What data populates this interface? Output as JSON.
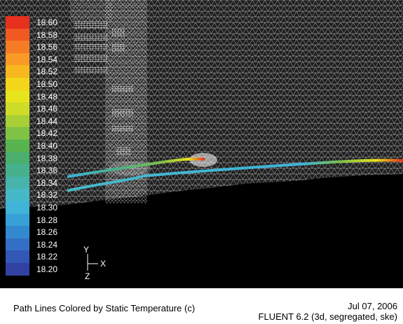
{
  "plot": {
    "title": "Path Lines Colored by Static Temperature (c)",
    "date": "Jul 07, 2006",
    "solver": "FLUENT 6.2 (3d, segregated, ske)"
  },
  "colorbar": {
    "labels": [
      "18.60",
      "18.58",
      "18.56",
      "18.54",
      "18.52",
      "18.50",
      "18.48",
      "18.46",
      "18.44",
      "18.42",
      "18.40",
      "18.38",
      "18.36",
      "18.34",
      "18.32",
      "18.30",
      "18.28",
      "18.26",
      "18.24",
      "18.22",
      "18.20"
    ],
    "colors": [
      "#e8301f",
      "#f05a22",
      "#f57c24",
      "#f99a26",
      "#f6b81e",
      "#f3d61a",
      "#e8e41c",
      "#cfdc28",
      "#a8cf36",
      "#7fc244",
      "#58b44f",
      "#4aae6e",
      "#47b08e",
      "#46b4ab",
      "#45b9c8",
      "#3fb3d8",
      "#37a0d6",
      "#3289d0",
      "#3370c5",
      "#3357b5",
      "#3141a2"
    ]
  },
  "axes": {
    "y": "Y",
    "x": "X",
    "z": "Z"
  }
}
